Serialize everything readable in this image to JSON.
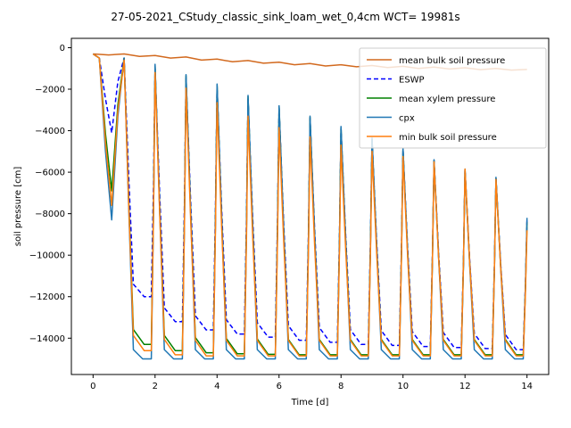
{
  "chart_data": {
    "type": "line",
    "title": "27-05-2021_CStudy_classic_sink_loam_wet_0,4cm  WCT= 19981s",
    "xlabel": "Time [d]",
    "ylabel": "soil pressure [cm]",
    "xlim": [
      -0.7,
      14.7
    ],
    "ylim": [
      -15750,
      450
    ],
    "xticks": [
      0,
      2,
      4,
      6,
      8,
      10,
      12,
      14
    ],
    "yticks": [
      0,
      -2000,
      -4000,
      -6000,
      -8000,
      -10000,
      -12000,
      -14000
    ],
    "ytick_labels": [
      "0",
      "−2000",
      "−4000",
      "−6000",
      "−8000",
      "−10000",
      "−12000",
      "−14000"
    ],
    "legend_position": "upper-right",
    "cycle_peaks": {
      "days": [
        1,
        2,
        3,
        4,
        5,
        6,
        7,
        8,
        9,
        10,
        11,
        12,
        13,
        14
      ],
      "cpx": [
        -500,
        -800,
        -1300,
        -1750,
        -2300,
        -2800,
        -3300,
        -3800,
        -4350,
        -4850,
        -5400,
        -5850,
        -6250,
        -8200
      ],
      "mean_xylem": [
        -500,
        -900,
        -1350,
        -1800,
        -2350,
        -2850,
        -3350,
        -3850,
        -4400,
        -4900,
        -5450,
        -5900,
        -6300,
        -8400
      ],
      "min_bulk": [
        -600,
        -1200,
        -1950,
        -2650,
        -3300,
        -3850,
        -4300,
        -4700,
        -5000,
        -5250,
        -5500,
        -5850,
        -6350,
        -8800
      ],
      "eswp": [
        -500,
        -1000,
        -1450,
        -1900,
        -2400,
        -2900,
        -3400,
        -3900,
        -4400,
        -4900,
        -5450,
        -5900,
        -6300,
        -8300
      ]
    },
    "cycle_troughs": {
      "days": [
        0.6,
        1.65,
        2.65,
        3.65,
        4.65,
        5.65,
        6.65,
        7.65,
        8.65,
        9.65,
        10.65,
        11.65,
        12.65,
        13.65
      ],
      "cpx": [
        -8300,
        -15000,
        -15000,
        -15000,
        -15000,
        -15000,
        -15000,
        -15000,
        -15000,
        -15000,
        -15000,
        -15000,
        -15000,
        -15000
      ],
      "mean_xylem": [
        -6900,
        -14300,
        -14600,
        -14700,
        -14750,
        -14780,
        -14800,
        -14800,
        -14800,
        -14800,
        -14800,
        -14800,
        -14800,
        -14800
      ],
      "min_bulk": [
        -7600,
        -14600,
        -14800,
        -14850,
        -14850,
        -14850,
        -14850,
        -14850,
        -14850,
        -14850,
        -14850,
        -14850,
        -14850,
        -14850
      ],
      "eswp": [
        -4100,
        -12000,
        -13200,
        -13600,
        -13800,
        -13950,
        -14100,
        -14200,
        -14300,
        -14350,
        -14400,
        -14450,
        -14500,
        -14550
      ]
    },
    "series": [
      {
        "name": "mean bulk soil pressure",
        "color": "#d2691e",
        "style": "solid",
        "x": [
          0,
          0.5,
          1,
          1.5,
          2,
          2.5,
          3,
          3.5,
          4,
          4.5,
          5,
          5.5,
          6,
          6.5,
          7,
          7.5,
          8,
          8.5,
          9,
          9.5,
          10,
          10.5,
          11,
          11.5,
          12,
          12.5,
          13,
          13.5,
          14
        ],
        "y": [
          -300,
          -350,
          -300,
          -420,
          -380,
          -500,
          -450,
          -600,
          -550,
          -680,
          -620,
          -750,
          -700,
          -820,
          -760,
          -880,
          -820,
          -920,
          -860,
          -960,
          -900,
          -1000,
          -940,
          -1030,
          -970,
          -1060,
          -1000,
          -1080,
          -1050
        ]
      },
      {
        "name": "ESWP",
        "color": "#0000ff",
        "style": "dashed"
      },
      {
        "name": "mean xylem pressure",
        "color": "#008000",
        "style": "solid"
      },
      {
        "name": "cpx",
        "color": "#1f77b4",
        "style": "solid"
      },
      {
        "name": "min bulk soil pressure",
        "color": "#ff7f0e",
        "style": "solid"
      }
    ]
  }
}
